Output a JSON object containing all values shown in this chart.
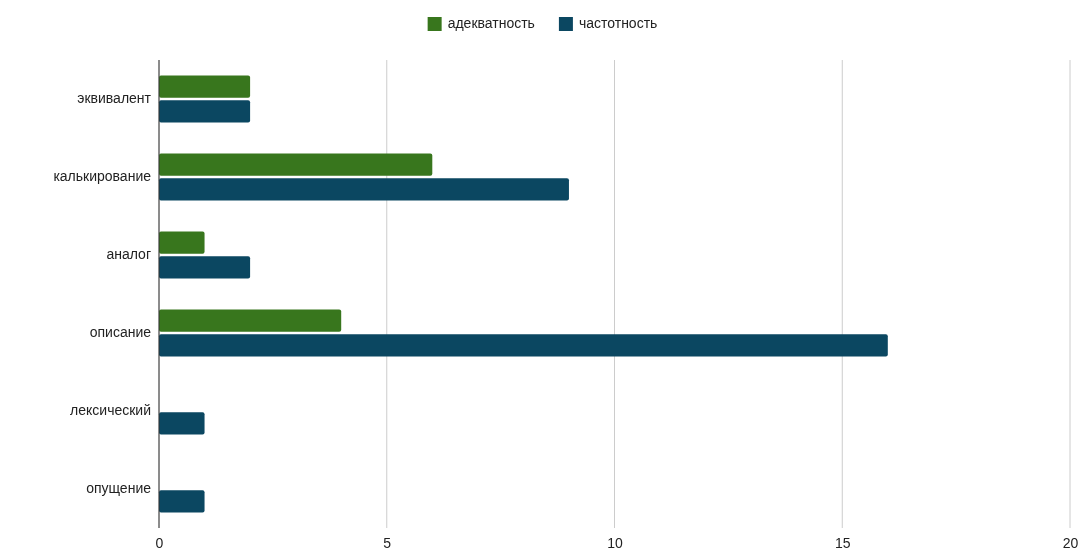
{
  "chart_data": {
    "type": "bar",
    "orientation": "horizontal",
    "categories": [
      "эквивалент",
      "калькирование",
      "аналог",
      "описание",
      "лексический",
      "опущение"
    ],
    "series": [
      {
        "name": "адекватность",
        "color": "#38761d",
        "values": [
          2,
          6,
          1,
          4,
          0,
          0
        ]
      },
      {
        "name": "частотность",
        "color": "#0b4761",
        "values": [
          2,
          9,
          2,
          16,
          1,
          1
        ]
      }
    ],
    "xlim": [
      0,
      20
    ],
    "xticks": [
      0,
      5,
      10,
      15,
      20
    ],
    "grid": "x",
    "legend": "top"
  }
}
